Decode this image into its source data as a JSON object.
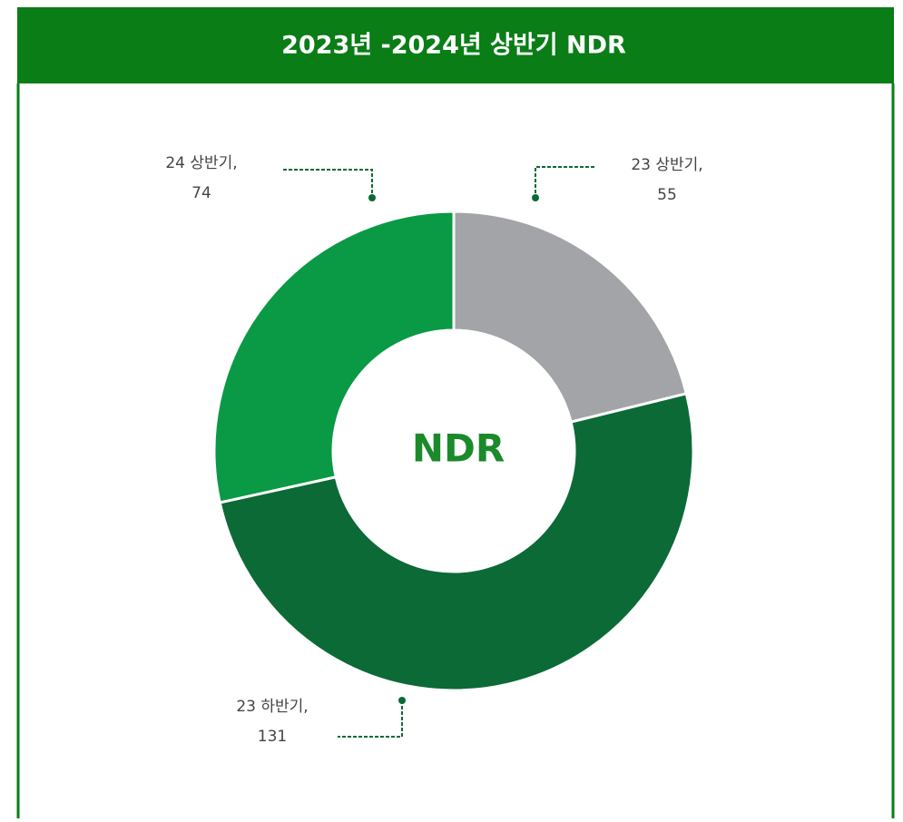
{
  "chart_data": {
    "type": "donut",
    "title": "2023년 -2024년 상반기 NDR",
    "center_label": "NDR",
    "categories": [
      "23 상반기,",
      "23 하반기,",
      "24 상반기,"
    ],
    "values": [
      55,
      131,
      74
    ],
    "colors": [
      "#a2a4a7",
      "#0b6a36",
      "#0a9944"
    ]
  }
}
